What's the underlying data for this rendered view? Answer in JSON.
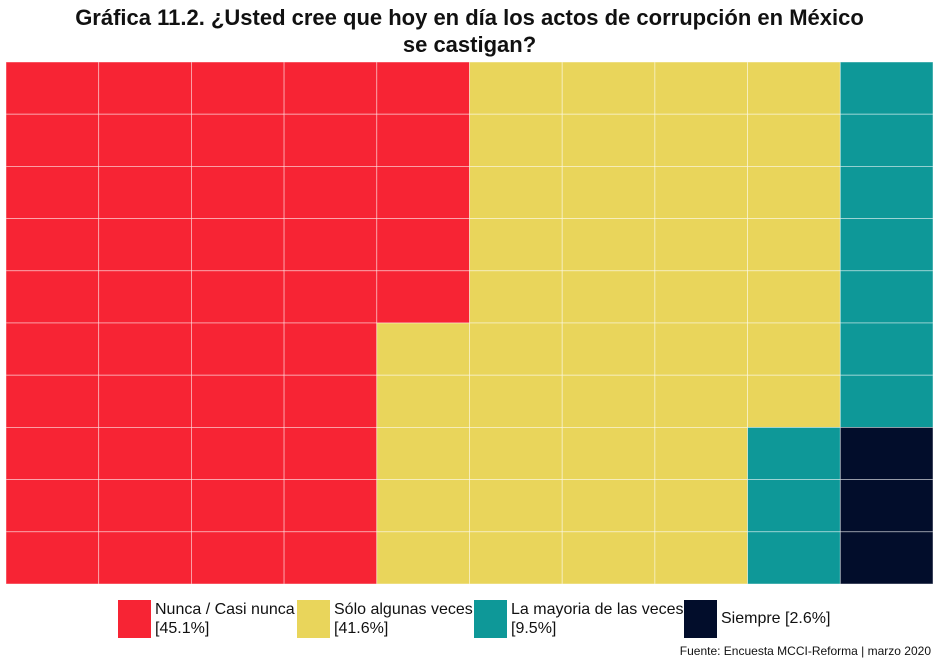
{
  "title_line1": "Gráfica 11.2. ¿Usted cree que hoy en día los actos de corrupción en México",
  "title_line2": "se castigan?",
  "source": "Fuente: Encuesta MCCI-Reforma | marzo 2020",
  "chart_data": {
    "type": "waffle",
    "grid": {
      "columns": 10,
      "rows": 10
    },
    "fill_order": "column-wise, top-to-bottom, left-to-right",
    "categories": [
      {
        "label_line1": "Nunca / Casi nunca",
        "label_line2": "[45.1%]",
        "percent": 45.1,
        "squares": 45,
        "color": "#f72434"
      },
      {
        "label_line1": "Sólo algunas veces",
        "label_line2": "[41.6%]",
        "percent": 41.6,
        "squares": 42,
        "color": "#e9d55b"
      },
      {
        "label_line1": "La mayoria de las veces",
        "label_line2": "[9.5%]",
        "percent": 9.5,
        "squares": 10,
        "color": "#0e9898"
      },
      {
        "label_line1": "Siempre [2.6%]",
        "label_line2": "",
        "percent": 2.6,
        "squares": 3,
        "color": "#020d2b"
      }
    ],
    "grid_color": "#ffffff"
  }
}
